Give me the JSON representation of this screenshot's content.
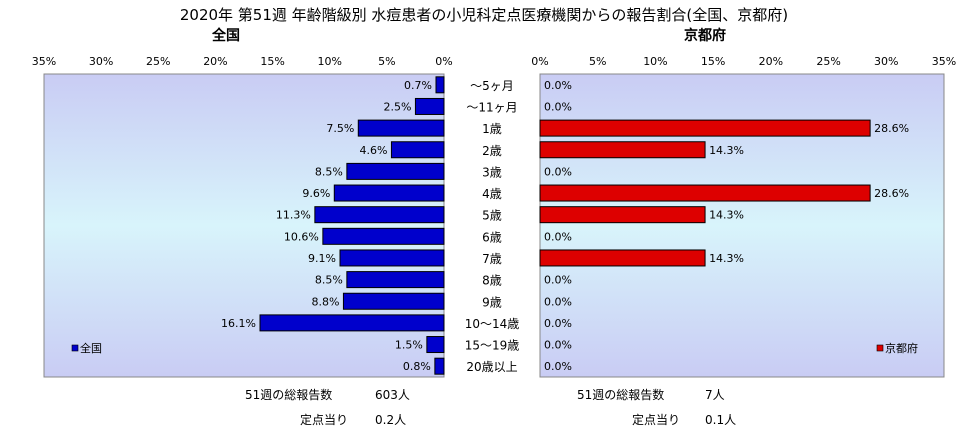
{
  "title": "2020年 第51週 年齢階級別 水痘患者の小児科定点医療機関からの報告割合(全国、京都府)",
  "categories": [
    "～5ヶ月",
    "～11ヶ月",
    "1歳",
    "2歳",
    "3歳",
    "4歳",
    "5歳",
    "6歳",
    "7歳",
    "8歳",
    "9歳",
    "10～14歳",
    "15～19歳",
    "20歳以上"
  ],
  "colors": {
    "national": "#0000cc",
    "kyoto": "#dd0000",
    "plot_bg_top": "#c9ccf4",
    "plot_bg_mid": "#d8f4fb"
  },
  "chart_data": [
    {
      "type": "bar",
      "orientation": "horizontal",
      "direction": "leftward",
      "title": "全国",
      "series": [
        {
          "name": "全国",
          "values": [
            0.7,
            2.5,
            7.5,
            4.6,
            8.5,
            9.6,
            11.3,
            10.6,
            9.1,
            8.5,
            8.8,
            16.1,
            1.5,
            0.8
          ]
        }
      ],
      "value_labels": [
        "0.7%",
        "2.5%",
        "7.5%",
        "4.6%",
        "8.5%",
        "9.6%",
        "11.3%",
        "10.6%",
        "9.1%",
        "8.5%",
        "8.8%",
        "16.1%",
        "1.5%",
        "0.8%"
      ],
      "xlim": [
        0,
        35
      ],
      "xticks": [
        "0%",
        "5%",
        "10%",
        "15%",
        "20%",
        "25%",
        "30%",
        "35%"
      ],
      "legend": "bottom-left"
    },
    {
      "type": "bar",
      "orientation": "horizontal",
      "direction": "rightward",
      "title": "京都府",
      "series": [
        {
          "name": "京都府",
          "values": [
            0.0,
            0.0,
            28.6,
            14.3,
            0.0,
            28.6,
            14.3,
            0.0,
            14.3,
            0.0,
            0.0,
            0.0,
            0.0,
            0.0
          ]
        }
      ],
      "value_labels": [
        "0.0%",
        "0.0%",
        "28.6%",
        "14.3%",
        "0.0%",
        "28.6%",
        "14.3%",
        "0.0%",
        "14.3%",
        "0.0%",
        "0.0%",
        "0.0%",
        "0.0%",
        "0.0%"
      ],
      "xlim": [
        0,
        35
      ],
      "xticks": [
        "0%",
        "5%",
        "10%",
        "15%",
        "20%",
        "25%",
        "30%",
        "35%"
      ],
      "legend": "bottom-right"
    }
  ],
  "summary": {
    "national": {
      "total_label": "51週の総報告数",
      "total_value": "603人",
      "per_label": "定点当り",
      "per_value": "0.2人"
    },
    "kyoto": {
      "total_label": "51週の総報告数",
      "total_value": "7人",
      "per_label": "定点当り",
      "per_value": "0.1人"
    }
  }
}
